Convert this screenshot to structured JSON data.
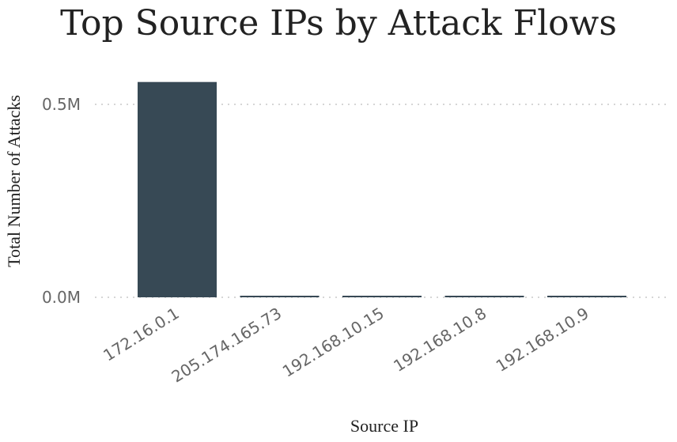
{
  "chart_data": {
    "type": "bar",
    "title": "Top Source IPs by Attack Flows",
    "xlabel": "Source IP",
    "ylabel": "Total Number of Attacks",
    "categories": [
      "172.16.0.1",
      "205.174.165.73",
      "192.168.10.15",
      "192.168.10.8",
      "192.168.10.9"
    ],
    "values": [
      558000,
      1500,
      1500,
      1500,
      1500
    ],
    "ylim": [
      0,
      600000
    ],
    "yticks": [
      {
        "value": 0,
        "label": "0.0M"
      },
      {
        "value": 500000,
        "label": "0.5M"
      }
    ],
    "grid": true,
    "bar_color": "#374955"
  }
}
